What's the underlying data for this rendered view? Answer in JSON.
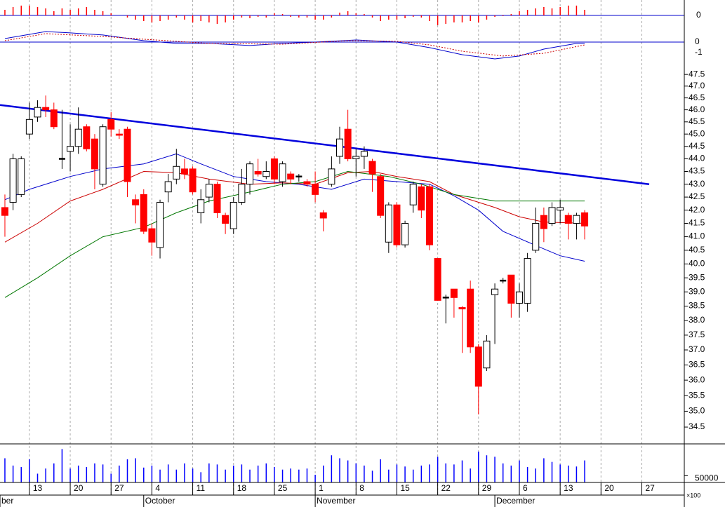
{
  "chart_data": {
    "type": "candlestick",
    "log": true,
    "xlim": [
      -0.6,
      83.2
    ],
    "ylim": [
      34.0,
      48.45
    ],
    "yticks": [
      34.5,
      {
        "value": 35,
        "label": "35.0"
      },
      35.5,
      {
        "value": 36,
        "label": "36.0"
      },
      36.5,
      {
        "value": 37,
        "label": "37.0"
      },
      37.5,
      {
        "value": 38,
        "label": "38.0"
      },
      38.5,
      {
        "value": 39,
        "label": "39.0"
      },
      39.5,
      {
        "value": 40,
        "label": "40.0"
      },
      40.5,
      {
        "value": 41,
        "label": "41.0"
      },
      41.5,
      {
        "value": 42,
        "label": "42.0"
      },
      42.5,
      {
        "value": 43,
        "label": "43.0"
      },
      43.5,
      {
        "value": 44,
        "label": "44.0"
      },
      44.5,
      {
        "value": 45,
        "label": "45.0"
      },
      45.5,
      {
        "value": 46,
        "label": "46.0"
      },
      46.5,
      {
        "value": 47,
        "label": "47.0"
      },
      47.5
    ],
    "xticks": [
      {
        "value": 3,
        "label": "13"
      },
      {
        "value": 8,
        "label": "20"
      },
      {
        "value": 13,
        "label": "27"
      },
      {
        "value": 18,
        "label": "4"
      },
      {
        "value": 23,
        "label": "11"
      },
      {
        "value": 28,
        "label": "18"
      },
      {
        "value": 33,
        "label": "25"
      },
      {
        "value": 38,
        "label": "1"
      },
      {
        "value": 43,
        "label": "8"
      },
      {
        "value": 48,
        "label": "15"
      },
      {
        "value": 53,
        "label": "22"
      },
      {
        "value": 58,
        "label": "29"
      },
      {
        "value": 63,
        "label": "6"
      },
      {
        "value": 68,
        "label": "13"
      },
      {
        "value": 73,
        "label": "20"
      },
      {
        "value": 78,
        "label": "27"
      }
    ],
    "month_labels": [
      {
        "x": -0.6,
        "label": "ber"
      },
      {
        "x": 17,
        "label": "October"
      },
      {
        "x": 38,
        "label": "November"
      },
      {
        "x": 60,
        "label": "December"
      }
    ],
    "grid": true,
    "up_color": "#ffffff",
    "down_color": "#ff0000",
    "x": [
      0,
      1,
      2,
      3,
      4,
      5,
      6,
      7,
      8,
      9,
      10,
      11,
      12,
      13,
      14,
      15,
      16,
      17,
      18,
      19,
      20,
      21,
      22,
      23,
      24,
      25,
      26,
      27,
      28,
      29,
      30,
      31,
      32,
      33,
      34,
      35,
      36,
      37,
      38,
      39,
      40,
      41,
      42,
      43,
      44,
      45,
      46,
      47,
      48,
      49,
      50,
      51,
      52,
      53,
      54,
      55,
      56,
      57,
      58,
      59,
      60,
      61,
      62,
      63,
      64,
      65,
      66,
      67,
      68,
      69,
      70,
      71
    ],
    "open": [
      42.1,
      42.3,
      42.6,
      45,
      45.7,
      46.1,
      46,
      44,
      44.3,
      44.5,
      45.3,
      44.8,
      43,
      45.6,
      45,
      45.2,
      42.4,
      42.6,
      41.3,
      40.6,
      42.7,
      43.2,
      43.6,
      43.6,
      41.9,
      42.5,
      43,
      41.8,
      41.3,
      42.3,
      43,
      43.5,
      43.3,
      44,
      43.1,
      43.4,
      43.3,
      43.1,
      43,
      41.9,
      43,
      44.1,
      45.2,
      44,
      44.1,
      43.9,
      43.3,
      40.8,
      42.2,
      40.7,
      42.2,
      42.9,
      42.9,
      40.2,
      38.8,
      39.1,
      38.45,
      39.1,
      37.1,
      36.4,
      38.9,
      39.4,
      39.6,
      38.6,
      38.6,
      40.5,
      41.8,
      41.5,
      42,
      41.8,
      41.5,
      41.9
    ],
    "high": [
      42.6,
      44.2,
      44.1,
      46.3,
      46.4,
      46.6,
      46.3,
      46,
      45.4,
      46.1,
      45.4,
      45,
      45.4,
      45.9,
      45.2,
      45.3,
      42.6,
      42.8,
      41.5,
      42.4,
      43.4,
      44.4,
      44,
      43.7,
      42.8,
      43.2,
      43.1,
      41.9,
      42.5,
      43.6,
      43.9,
      44,
      43.9,
      44.1,
      43.9,
      43.5,
      43.4,
      43.2,
      43.5,
      42,
      44.1,
      45.3,
      46,
      44.4,
      44.5,
      44,
      43.4,
      42.3,
      42.3,
      41.6,
      43.1,
      43,
      43,
      40.2,
      38.9,
      39.1,
      38.5,
      39.4,
      37.2,
      37.5,
      39.3,
      39.5,
      39.6,
      39.3,
      40.4,
      42.1,
      42.1,
      42.3,
      42.4,
      41.9,
      41.9,
      42
    ],
    "low": [
      41,
      42,
      42.5,
      44.8,
      45.5,
      45.7,
      45.2,
      43.6,
      43.5,
      44.2,
      44.3,
      42.8,
      42.9,
      44.9,
      44.8,
      42.5,
      41.5,
      41.1,
      40.3,
      40.2,
      42.3,
      43,
      43.2,
      42.6,
      41.5,
      42.3,
      41.7,
      41.1,
      41.1,
      42.2,
      42.6,
      43.3,
      43.2,
      43,
      42.9,
      43,
      43.1,
      42.9,
      42.3,
      41.2,
      42.9,
      43.8,
      43.9,
      43.3,
      43.6,
      42.7,
      41.7,
      40.4,
      40.6,
      40.6,
      41.9,
      41.7,
      40.5,
      38.7,
      37.9,
      38.1,
      36.9,
      36.9,
      34.9,
      36.3,
      37.2,
      39.3,
      38.1,
      38.1,
      38.3,
      40.4,
      40.8,
      41.4,
      41.5,
      40.9,
      40.9,
      40.9
    ],
    "close": [
      41.8,
      44,
      44,
      45.6,
      46.1,
      46,
      45.3,
      44,
      44.5,
      45.2,
      44.4,
      43.6,
      45.3,
      45.2,
      44.95,
      43.1,
      42.2,
      41.2,
      40.8,
      42.3,
      43.1,
      43.7,
      43.4,
      42.7,
      42.4,
      43,
      41.9,
      41.5,
      42.3,
      43,
      43.8,
      43.4,
      43.5,
      43.2,
      43.8,
      43.2,
      43.3,
      43,
      42.6,
      41.7,
      43.6,
      44.8,
      44,
      44.1,
      44.3,
      43.4,
      41.8,
      42.2,
      40.7,
      41.5,
      43,
      42,
      40.7,
      38.7,
      38.8,
      38.8,
      38.4,
      37.1,
      35.8,
      37.3,
      39.1,
      39.4,
      38.6,
      39,
      40.2,
      41.5,
      41.3,
      42.1,
      42.1,
      41.5,
      41.8,
      41.4
    ],
    "moving_averages": [
      {
        "color": "#0000cc",
        "x": [
          0,
          3,
          8,
          12,
          17,
          21,
          24,
          28,
          32,
          36,
          40,
          44,
          48,
          52,
          55,
          58,
          61,
          66,
          68,
          71
        ],
        "values": [
          42.4,
          42.8,
          43.3,
          43.6,
          43.8,
          44.2,
          43.8,
          43.3,
          43.1,
          43,
          42.8,
          43.2,
          43.1,
          43,
          42.55,
          42,
          41.2,
          40.55,
          40.3,
          40.1
        ]
      },
      {
        "color": "#cc0000",
        "x": [
          0,
          4,
          8,
          12,
          17,
          21,
          25,
          30,
          34,
          38,
          42,
          45,
          48,
          52,
          55,
          60,
          63,
          66,
          71
        ],
        "values": [
          40.8,
          41.5,
          42.35,
          42.8,
          43.5,
          43.45,
          43.2,
          43,
          43.05,
          43,
          43.45,
          43.5,
          43.3,
          43.1,
          42.6,
          42.1,
          41.75,
          41.55,
          41.5
        ]
      },
      {
        "color": "#007700",
        "x": [
          0,
          4,
          8,
          12,
          17,
          21,
          25,
          30,
          34,
          38,
          42,
          47,
          51,
          55,
          60,
          64,
          68,
          71
        ],
        "values": [
          38.8,
          39.5,
          40.3,
          41,
          41.35,
          41.9,
          42.35,
          42.7,
          43,
          43.1,
          43.5,
          43.3,
          43,
          42.6,
          42.35,
          42.35,
          42.35,
          42.35
        ]
      }
    ],
    "trendline": {
      "color": "#0000dd",
      "x": [
        -0.6,
        78.9
      ],
      "values": [
        46.2,
        43.0
      ]
    },
    "volume": {
      "color": "#0000ff",
      "ylim": [
        0,
        280000
      ],
      "yticks": [
        50000
      ],
      "unit_label": "×100",
      "values": [
        179000,
        125000,
        114000,
        171000,
        65000,
        103000,
        141000,
        247000,
        103000,
        125000,
        114000,
        141000,
        133000,
        65000,
        125000,
        171000,
        179000,
        110000,
        125000,
        95000,
        133000,
        95000,
        141000,
        103000,
        76000,
        141000,
        133000,
        95000,
        125000,
        133000,
        95000,
        125000,
        141000,
        114000,
        95000,
        103000,
        95000,
        103000,
        57000,
        125000,
        201000,
        179000,
        163000,
        141000,
        125000,
        87000,
        171000,
        95000,
        133000,
        118000,
        95000,
        125000,
        133000,
        190000,
        141000,
        133000,
        163000,
        103000,
        228000,
        201000,
        190000,
        141000,
        125000,
        163000,
        114000,
        103000,
        179000,
        152000,
        133000,
        125000,
        118000,
        163000
      ]
    },
    "macd_histogram": {
      "color": "#ff0000",
      "ylim": [
        -0.2,
        0.2
      ],
      "yticks": [
        0
      ],
      "values": [
        0.08,
        0.12,
        0.14,
        0.14,
        0.12,
        0.1,
        0.06,
        0.1,
        0.08,
        0.1,
        0.12,
        0.08,
        0.06,
        0.03,
        0,
        -0.03,
        -0.06,
        -0.08,
        -0.1,
        -0.08,
        -0.06,
        -0.03,
        -0.06,
        -0.1,
        -0.08,
        -0.1,
        -0.12,
        -0.1,
        -0.06,
        -0.03,
        -0.04,
        -0.02,
        -0.03,
        0.03,
        0.02,
        -0.02,
        -0.03,
        -0.03,
        -0.06,
        -0.06,
        -0.03,
        0.04,
        0.06,
        0.03,
        0.02,
        -0.03,
        -0.08,
        -0.06,
        -0.06,
        -0.04,
        -0.02,
        -0.03,
        -0.08,
        -0.14,
        -0.12,
        -0.1,
        -0.1,
        -0.08,
        -0.1,
        -0.06,
        -0.02,
        -0.01,
        0.02,
        0.06,
        0.08,
        0.1,
        0.12,
        0.1,
        0.12,
        0.14,
        0.14,
        0.08
      ]
    },
    "macd": {
      "ylim": [
        -1.87,
        1.2
      ],
      "yticks": [
        0,
        -1
      ],
      "series": [
        {
          "color": "#0000cc",
          "dashed": false,
          "x": [
            0,
            5,
            8,
            12,
            17,
            21,
            25,
            30,
            34,
            38,
            43,
            48,
            52,
            56,
            60,
            63,
            66,
            70,
            71
          ],
          "values": [
            0.33,
            1,
            0.87,
            0.67,
            0.13,
            -0.13,
            -0.13,
            -0.33,
            -0.13,
            0,
            0.2,
            0,
            -0.53,
            -1.2,
            -1.6,
            -1.33,
            -0.67,
            -0.13,
            -0.13
          ]
        },
        {
          "color": "#cc0000",
          "dashed": true,
          "x": [
            0,
            5,
            12,
            17,
            25,
            34,
            42,
            48,
            52,
            56,
            61,
            66,
            71
          ],
          "values": [
            0.13,
            0.8,
            0.53,
            0.27,
            -0.13,
            -0.2,
            0.13,
            0.07,
            -0.27,
            -0.87,
            -1.33,
            -1.07,
            -0.27
          ]
        }
      ]
    }
  }
}
